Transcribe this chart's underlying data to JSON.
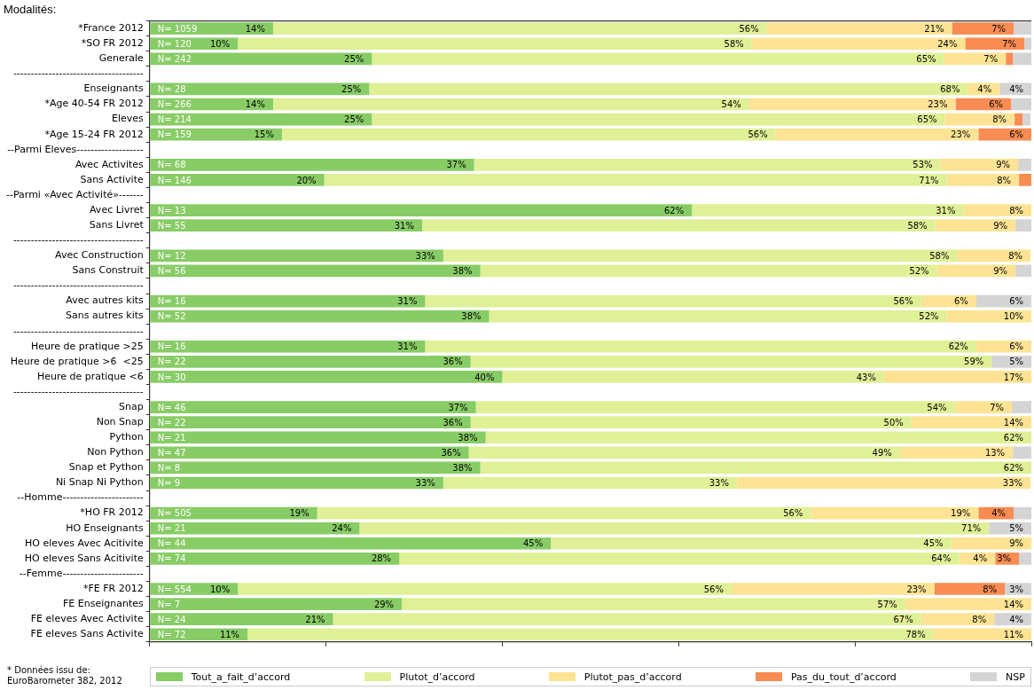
{
  "chart_data": {
    "type": "bar",
    "orientation": "horizontal",
    "stacked": true,
    "ylabel": "Modalités:",
    "categories": [
      "*France 2012",
      "*SO FR 2012",
      "Generale",
      "-------------------------------------",
      "Enseignants",
      "*Age 40-54 FR 2012",
      "Eleves",
      "*Age 15-24 FR 2012",
      "--Parmi Eleves-------------------",
      "Avec Activites",
      "Sans Activite",
      "--Parmi «Avec Activité»-------",
      "Avec Livret",
      "Sans Livret",
      "-------------------------------------",
      "Avec Construction",
      "Sans Construit",
      "-------------------------------------",
      "Avec autres kits",
      "Sans autres kits",
      "-------------------------------------",
      "Heure de pratique >25",
      "Heure de pratique >6  <25",
      "Heure de pratique <6",
      "-------------------------------------",
      "Snap",
      "Non Snap",
      "Python",
      "Non Python",
      "Snap et Python",
      "Ni Snap Ni Python",
      "--Homme-----------------------",
      "*HO FR 2012",
      "HO Enseignants",
      "HO eleves Avec Acitivite",
      "HO eleves Sans Acitivite",
      "--Femme-----------------------",
      "*FE FR 2012",
      "FE Enseignantes",
      "FE eleves Avec Activite",
      "FE eleves Sans Activite"
    ],
    "series": [
      {
        "name": "Tout_a_fait_d’accord",
        "color": "#88cc66",
        "values": [
          14,
          10,
          25.2,
          null,
          24.9,
          14,
          25.2,
          15,
          null,
          36.8,
          19.8,
          null,
          61.5,
          30.9,
          null,
          33.3,
          37.5,
          null,
          31.25,
          38.5,
          null,
          31.25,
          36.4,
          40,
          null,
          37,
          36.4,
          38.1,
          36.2,
          37.5,
          33.3,
          null,
          19,
          23.8,
          45.5,
          28.3,
          null,
          10,
          28.6,
          20.8,
          11.1
        ],
        "value_labels": [
          "14%",
          "10%",
          "25%",
          null,
          "25%",
          "14%",
          "25%",
          "15%",
          null,
          "37%",
          "20%",
          null,
          "62%",
          "31%",
          null,
          "33%",
          "38%",
          null,
          "31%",
          "38%",
          null,
          "31%",
          "36%",
          "40%",
          null,
          "37%",
          "36%",
          "38%",
          "36%",
          "38%",
          "33%",
          null,
          "19%",
          "24%",
          "45%",
          "28%",
          null,
          "10%",
          "29%",
          "21%",
          "11%"
        ]
      },
      {
        "name": "Plutot_d’accord",
        "color": "#dff096",
        "values": [
          56,
          58.3,
          64.9,
          null,
          67.9,
          54,
          65,
          56,
          null,
          52.9,
          70.6,
          null,
          30.8,
          58.2,
          null,
          58.3,
          51.8,
          null,
          56.25,
          51.9,
          null,
          62.5,
          59.1,
          43.3,
          null,
          54.3,
          50,
          61.9,
          48.9,
          62.5,
          33.3,
          null,
          56,
          71.4,
          45.4,
          63.5,
          null,
          56,
          57.1,
          66.7,
          77.8
        ],
        "value_labels": [
          "56%",
          "58%",
          "65%",
          null,
          "68%",
          "54%",
          "65%",
          "56%",
          null,
          "53%",
          "71%",
          null,
          "31%",
          "58%",
          null,
          "58%",
          "52%",
          null,
          "56%",
          "52%",
          null,
          "62%",
          "59%",
          "43%",
          null,
          "54%",
          "50%",
          "62%",
          "49%",
          "62%",
          "33%",
          null,
          "56%",
          "71%",
          "45%",
          "64%",
          null,
          "56%",
          "57%",
          "67%",
          "78%"
        ]
      },
      {
        "name": "Plutot_pas_d’accord",
        "color": "#fde393",
        "values": [
          21,
          24.2,
          7,
          null,
          3.6,
          23.4,
          7.9,
          23,
          null,
          8.8,
          8.2,
          null,
          7.7,
          9.1,
          null,
          8.3,
          8.9,
          null,
          6.25,
          9.6,
          null,
          6.25,
          0,
          16.7,
          null,
          6.5,
          13.6,
          0,
          12.8,
          0,
          33.3,
          null,
          19,
          0,
          9.1,
          4.1,
          null,
          23,
          14.3,
          8.3,
          11.1
        ],
        "value_labels": [
          "21%",
          "24%",
          "7%",
          null,
          "4%",
          "23%",
          "8%",
          "23%",
          null,
          "9%",
          "8%",
          null,
          "8%",
          "9%",
          null,
          "8%",
          "9%",
          null,
          "6%",
          "10%",
          null,
          "6%",
          null,
          "17%",
          null,
          "7%",
          "14%",
          null,
          "13%",
          null,
          "33%",
          null,
          "19%",
          null,
          "9%",
          "4%",
          null,
          "23%",
          "14%",
          "8%",
          "11%"
        ]
      },
      {
        "name": "Pas_du_tout_d’accord",
        "color": "#f98c52",
        "values": [
          7,
          6.7,
          0.8,
          null,
          0,
          6.3,
          0.9,
          6,
          null,
          0,
          1.4,
          null,
          0,
          0,
          null,
          0,
          0,
          null,
          0,
          0,
          null,
          0,
          0,
          0,
          null,
          0,
          0,
          0,
          0,
          0,
          0,
          null,
          4,
          0,
          0,
          2.7,
          null,
          8,
          0,
          0,
          0
        ],
        "value_labels": [
          "7%",
          "7%",
          null,
          null,
          null,
          "6%",
          null,
          "6%",
          null,
          null,
          null,
          null,
          null,
          null,
          null,
          null,
          null,
          null,
          null,
          null,
          null,
          null,
          null,
          null,
          null,
          null,
          null,
          null,
          null,
          null,
          null,
          null,
          "4%",
          null,
          null,
          "3%",
          null,
          "8%",
          null,
          null,
          null
        ]
      },
      {
        "name": "NSP",
        "color": "#d4d4d4",
        "values": [
          2,
          0.8,
          2.1,
          null,
          3.6,
          2.3,
          0.9,
          0,
          null,
          1.5,
          0,
          null,
          0,
          1.8,
          null,
          0,
          1.8,
          null,
          6.25,
          0,
          null,
          0,
          4.5,
          0,
          null,
          2.2,
          0,
          0,
          2.1,
          0,
          0,
          null,
          2,
          4.8,
          0,
          1.4,
          null,
          3,
          0,
          4.2,
          0
        ],
        "value_labels": [
          null,
          null,
          null,
          null,
          "4%",
          null,
          null,
          null,
          null,
          null,
          null,
          null,
          null,
          null,
          null,
          null,
          null,
          null,
          "6%",
          null,
          null,
          null,
          "5%",
          null,
          null,
          null,
          null,
          null,
          null,
          null,
          null,
          null,
          null,
          "5%",
          null,
          null,
          null,
          "3%",
          null,
          "4%",
          null
        ]
      }
    ],
    "xlim": [
      0,
      100
    ],
    "xticks": [
      {
        "value": 0,
        "label": null
      },
      {
        "value": 20,
        "label": null
      },
      {
        "value": 40,
        "label": null
      },
      {
        "value": 60,
        "label": null
      },
      {
        "value": 80,
        "label": null
      },
      {
        "value": 100,
        "label": null
      }
    ],
    "tick_labels": "y",
    "legend": "bottom",
    "annotations": [
      "* Données issu de:\nEuroBarometer 382, 2012",
      {
        "text": "N= 1059",
        "y": "*France 2012"
      },
      {
        "text": "N= 120",
        "y": "*SO FR 2012"
      },
      {
        "text": "N= 242",
        "y": "Generale"
      },
      {
        "text": "N= 28",
        "y": "Enseignants"
      },
      {
        "text": "N= 266",
        "y": "*Age 40-54 FR 2012"
      },
      {
        "text": "N= 214",
        "y": "Eleves"
      },
      {
        "text": "N= 159",
        "y": "*Age 15-24 FR 2012"
      },
      {
        "text": "N= 68",
        "y": "Avec Activites"
      },
      {
        "text": "N= 146",
        "y": "Sans Activite"
      },
      {
        "text": "N= 13",
        "y": "Avec Livret"
      },
      {
        "text": "N= 55",
        "y": "Sans Livret"
      },
      {
        "text": "N= 12",
        "y": "Avec Construction"
      },
      {
        "text": "N= 56",
        "y": "Sans Construit"
      },
      {
        "text": "N= 16",
        "y": "Avec autres kits"
      },
      {
        "text": "N= 52",
        "y": "Sans autres kits"
      },
      {
        "text": "N= 16",
        "y": "Heure de pratique >25"
      },
      {
        "text": "N= 22",
        "y": "Heure de pratique >6  <25"
      },
      {
        "text": "N= 30",
        "y": "Heure de pratique <6"
      },
      {
        "text": "N= 46",
        "y": "Snap"
      },
      {
        "text": "N= 22",
        "y": "Non Snap"
      },
      {
        "text": "N= 21",
        "y": "Python"
      },
      {
        "text": "N= 47",
        "y": "Non Python"
      },
      {
        "text": "N= 8",
        "y": "Snap et Python"
      },
      {
        "text": "N= 9",
        "y": "Ni Snap Ni Python"
      },
      {
        "text": "N= 505",
        "y": "*HO FR 2012"
      },
      {
        "text": "N= 21",
        "y": "HO Enseignants"
      },
      {
        "text": "N= 44",
        "y": "HO eleves Avec Acitivite"
      },
      {
        "text": "N= 74",
        "y": "HO eleves Sans Acitivite"
      },
      {
        "text": "N= 554",
        "y": "*FE FR 2012"
      },
      {
        "text": "N= 7",
        "y": "FE Enseignantes"
      },
      {
        "text": "N= 24",
        "y": "FE eleves Avec Activite"
      },
      {
        "text": "N= 72",
        "y": "FE eleves Sans Activite"
      }
    ]
  }
}
